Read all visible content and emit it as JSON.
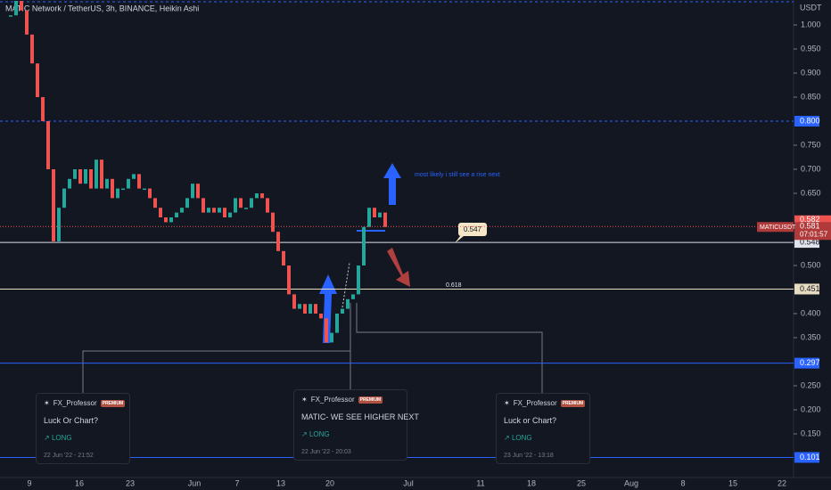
{
  "header": {
    "title": "MATIC Network / TetherUS, 3h, BINANCE, Heikin Ashi"
  },
  "axis": {
    "unit": "USDT",
    "yticks": [
      {
        "value": 1.0,
        "label": "1.000"
      },
      {
        "value": 0.95,
        "label": "0.950"
      },
      {
        "value": 0.9,
        "label": "0.900"
      },
      {
        "value": 0.85,
        "label": "0.850"
      },
      {
        "value": 0.75,
        "label": "0.750"
      },
      {
        "value": 0.7,
        "label": "0.700"
      },
      {
        "value": 0.65,
        "label": "0.650"
      },
      {
        "value": 0.5,
        "label": "0.500"
      },
      {
        "value": 0.4,
        "label": "0.400"
      },
      {
        "value": 0.35,
        "label": "0.350"
      },
      {
        "value": 0.25,
        "label": "0.250"
      },
      {
        "value": 0.2,
        "label": "0.200"
      },
      {
        "value": 0.15,
        "label": "0.150"
      }
    ],
    "xlabels": [
      "9",
      "16",
      "23",
      "Jun",
      "7",
      "13",
      "20",
      "Jul",
      "11",
      "18",
      "25",
      "Aug",
      "8",
      "15",
      "22"
    ]
  },
  "levels": [
    {
      "value": 0.8,
      "label": "0.800",
      "color": "#2962ff",
      "dashed": true
    },
    {
      "value": 0.548,
      "label": "0.548",
      "color": "#e0e3eb",
      "dashed": false
    },
    {
      "value": 0.451,
      "label": "0.451",
      "color": "#e8dcc0",
      "dashed": false
    },
    {
      "value": 0.297,
      "label": "0.297",
      "color": "#2962ff",
      "dashed": false
    },
    {
      "value": 0.101,
      "label": "0.101",
      "color": "#2962ff",
      "dashed": false
    }
  ],
  "price": {
    "symbol": "MATICUSDT",
    "high": {
      "value": 0.582,
      "label": "0.582"
    },
    "last": {
      "value": 0.581,
      "label": "0.581"
    },
    "countdown": "07:01:57"
  },
  "candles": {
    "closes": [
      1.02,
      1.05,
      1.03,
      0.98,
      0.92,
      0.85,
      0.8,
      0.7,
      0.55,
      0.62,
      0.66,
      0.68,
      0.7,
      0.67,
      0.7,
      0.66,
      0.72,
      0.66,
      0.68,
      0.64,
      0.66,
      0.66,
      0.68,
      0.69,
      0.66,
      0.66,
      0.64,
      0.62,
      0.6,
      0.59,
      0.6,
      0.61,
      0.62,
      0.64,
      0.67,
      0.64,
      0.61,
      0.62,
      0.61,
      0.62,
      0.6,
      0.61,
      0.64,
      0.62,
      0.62,
      0.64,
      0.65,
      0.64,
      0.61,
      0.57,
      0.53,
      0.5,
      0.44,
      0.41,
      0.42,
      0.4,
      0.42,
      0.4,
      0.39,
      0.34,
      0.36,
      0.4,
      0.41,
      0.43,
      0.44,
      0.5,
      0.58,
      0.62,
      0.6,
      0.61,
      0.58
    ]
  },
  "annotations": {
    "note": "most likely i still see a rise next",
    "callout": "0.547",
    "fib": "0.618"
  },
  "ideas": [
    {
      "author": "FX_Professor",
      "badge": "PREMIUM",
      "title": "Luck Or  Chart?",
      "direction": "LONG",
      "date": "22 Jun '22 - 21:52"
    },
    {
      "author": "FX_Professor",
      "badge": "PREMIUM",
      "title": "MATIC- WE SEE HIGHER NEXT",
      "direction": "LONG",
      "date": "22 Jun '22 - 20:03"
    },
    {
      "author": "FX_Professor",
      "badge": "PREMIUM",
      "title": "Luck or Chart?",
      "direction": "LONG",
      "date": "23 Jun '22 - 13:18"
    }
  ]
}
